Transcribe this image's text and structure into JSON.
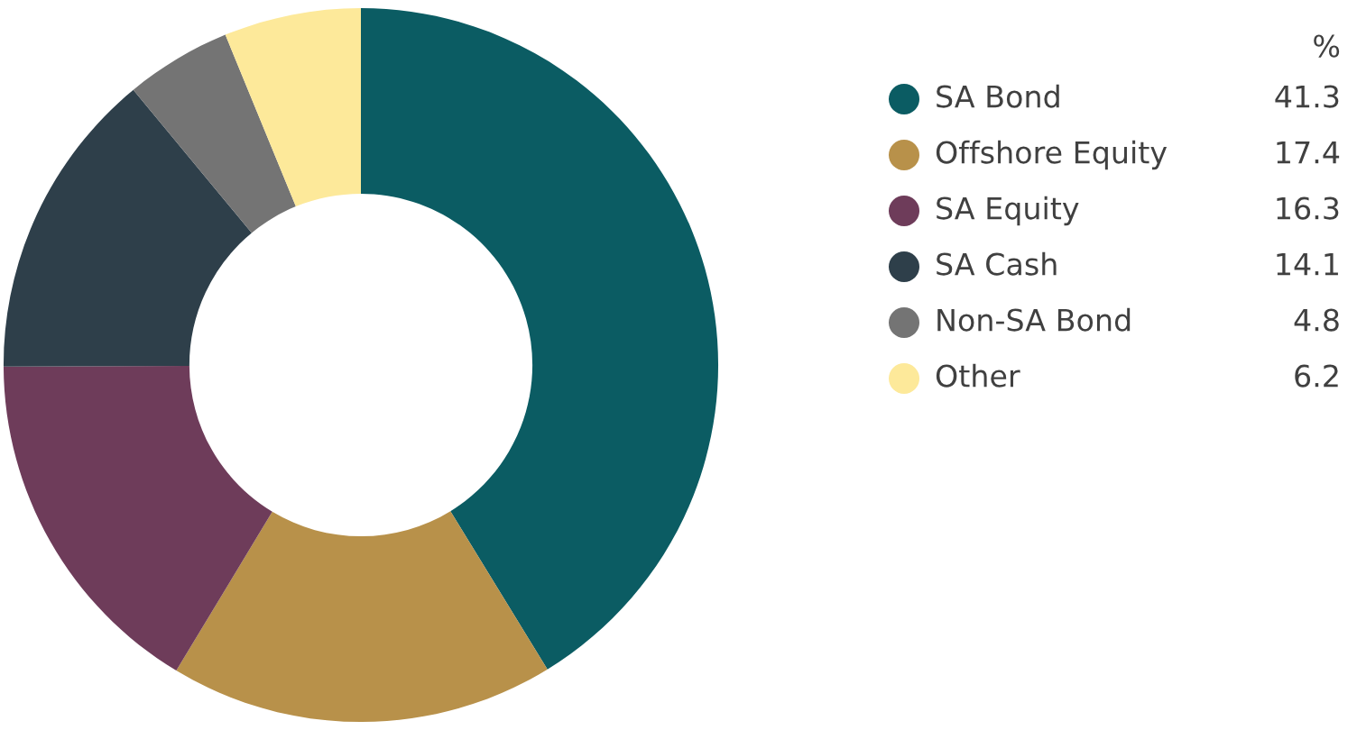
{
  "chart_data": {
    "type": "donut",
    "legend_title": "%",
    "categories": [
      "SA Bond",
      "Offshore Equity",
      "SA Equity",
      "SA Cash",
      "Non-SA Bond",
      "Other"
    ],
    "values": [
      41.3,
      17.4,
      16.3,
      14.1,
      4.8,
      6.2
    ],
    "colors": [
      "#0b5c63",
      "#b8914a",
      "#6e3c5a",
      "#2e3f4a",
      "#747474",
      "#fde99a"
    ],
    "data_labels": true,
    "legend": "right"
  }
}
